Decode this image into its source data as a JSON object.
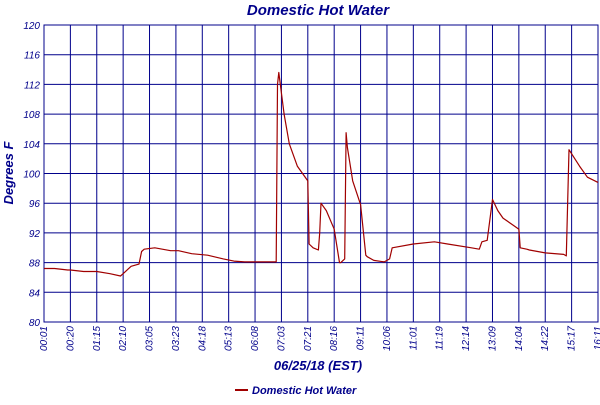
{
  "chart_data": {
    "type": "line",
    "title": "Domestic Hot Water",
    "xlabel": "06/25/18 (EST)",
    "ylabel": "Degrees F",
    "ylim": [
      80,
      120
    ],
    "yticks": [
      80,
      84,
      88,
      92,
      96,
      100,
      104,
      108,
      112,
      116,
      120
    ],
    "xticks": [
      "00:01",
      "00:20",
      "01:15",
      "02:10",
      "03:05",
      "03:23",
      "04:18",
      "05:13",
      "06:08",
      "07:03",
      "07:21",
      "08:16",
      "09:11",
      "10:06",
      "11:01",
      "11:19",
      "12:14",
      "13:09",
      "14:04",
      "14:22",
      "15:17",
      "16:11"
    ],
    "xrange": [
      0,
      21
    ],
    "grid": true,
    "colors": {
      "line": "#a00000",
      "grid": "#00008b",
      "text": "#00008b",
      "background": "#ffffff"
    },
    "legend": {
      "position": "bottom-center",
      "entries": [
        "Domestic Hot Water"
      ]
    },
    "series": [
      {
        "name": "Domestic Hot Water",
        "x": [
          0,
          0.4,
          0.9,
          1,
          1.5,
          2,
          2.5,
          2.9,
          3,
          3.3,
          3.6,
          3.7,
          3.8,
          4.2,
          4.8,
          5.1,
          5.6,
          6.2,
          6.8,
          7.2,
          7.6,
          8.3,
          8.8,
          8.85,
          8.9,
          9.1,
          9.3,
          9.6,
          10.0,
          10.05,
          10.2,
          10.4,
          10.45,
          10.5,
          10.7,
          11.0,
          11.2,
          11.25,
          11.4,
          11.45,
          11.5,
          11.7,
          12.0,
          12.2,
          12.25,
          12.5,
          12.9,
          13.1,
          13.2,
          14.0,
          14.8,
          15.3,
          16.2,
          16.5,
          16.6,
          16.8,
          17.0,
          17.2,
          17.4,
          17.8,
          18.0,
          18.05,
          18.3,
          18.4,
          19.0,
          19.7,
          19.8,
          19.9,
          20.3,
          20.6,
          21.0
        ],
        "values": [
          87.2,
          87.2,
          87.0,
          87.0,
          86.8,
          86.8,
          86.5,
          86.2,
          86.5,
          87.5,
          87.8,
          89.5,
          89.8,
          90.0,
          89.6,
          89.6,
          89.2,
          89.0,
          88.5,
          88.2,
          88.1,
          88.1,
          88.1,
          112.0,
          113.6,
          108.0,
          104.0,
          101.0,
          99.0,
          90.5,
          90.0,
          89.7,
          92.0,
          96.0,
          95.0,
          92.5,
          88.0,
          88.0,
          88.5,
          105.5,
          103.5,
          99.0,
          95.8,
          89.0,
          88.8,
          88.3,
          88.1,
          88.5,
          90.0,
          90.5,
          90.8,
          90.5,
          90.0,
          89.8,
          90.8,
          91.0,
          96.5,
          95.0,
          94.0,
          93.0,
          92.5,
          90.0,
          89.8,
          89.7,
          89.3,
          89.1,
          88.9,
          103.2,
          101.0,
          99.5,
          98.8
        ]
      }
    ]
  }
}
